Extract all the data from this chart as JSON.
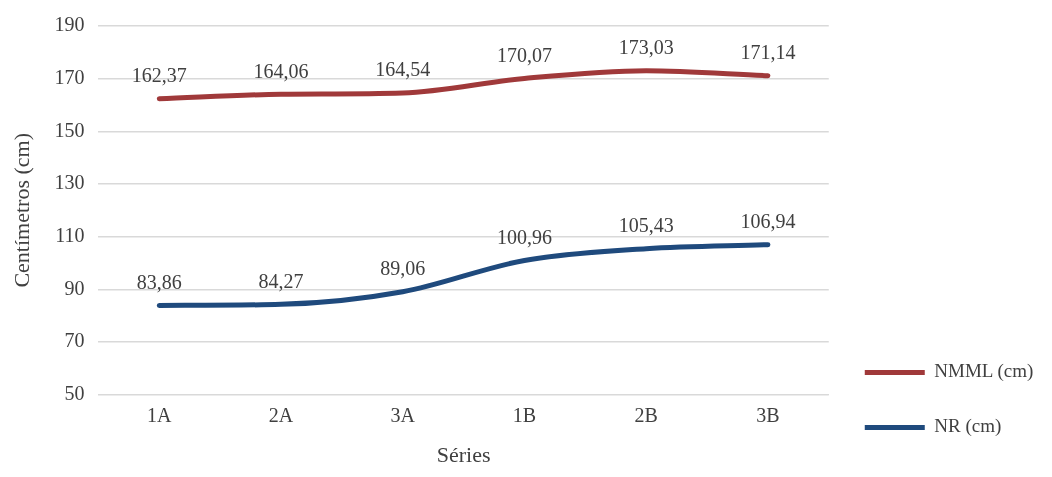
{
  "chart_data": {
    "type": "line",
    "xlabel": "Séries",
    "ylabel": "Centímetros (cm)",
    "categories": [
      "1A",
      "2A",
      "3A",
      "1B",
      "2B",
      "3B"
    ],
    "series": [
      {
        "name": "NMML (cm)",
        "color": "#a0393a",
        "values": [
          162.37,
          164.06,
          164.54,
          170.07,
          173.03,
          171.14
        ],
        "value_labels": [
          "162,37",
          "164,06",
          "164,54",
          "170,07",
          "173,03",
          "171,14"
        ]
      },
      {
        "name": "NR (cm)",
        "color": "#1f4a7d",
        "values": [
          83.86,
          84.27,
          89.06,
          100.96,
          105.43,
          106.94
        ],
        "value_labels": [
          "83,86",
          "84,27",
          "89,06",
          "100,96",
          "105,43",
          "106,94"
        ]
      }
    ],
    "ylim": [
      50,
      190
    ],
    "yticks": [
      50,
      70,
      90,
      110,
      130,
      150,
      170,
      190
    ],
    "grid": "y",
    "legend": "bottom right",
    "marker": "none",
    "line_style": "solid"
  }
}
